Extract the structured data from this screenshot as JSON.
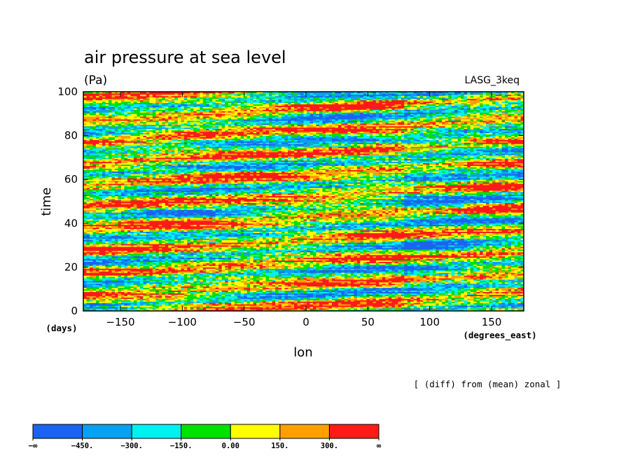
{
  "chart_data": {
    "type": "heatmap",
    "title": "air pressure at sea level",
    "units": "(Pa)",
    "model": "LASG_3keq",
    "xlabel": "lon",
    "ylabel": "time",
    "x_units": "(degrees_east)",
    "y_units": "(days)",
    "xlim": [
      -180,
      176
    ],
    "ylim": [
      0,
      100
    ],
    "x_ticks": [
      -150,
      -100,
      -50,
      0,
      50,
      100,
      150
    ],
    "y_ticks": [
      0,
      20,
      40,
      60,
      80,
      100
    ],
    "note": "[ (diff) from (mean) zonal ]",
    "grid": false,
    "colorbar": {
      "placement": "bottom-left",
      "boundaries": [
        "-450.",
        "-300.",
        "-150.",
        "0.00",
        "150.",
        "300."
      ],
      "end_labels": [
        "−∞",
        "∞"
      ],
      "colors": [
        "#1a64f0",
        "#0aa0f0",
        "#00f0f0",
        "#00e000",
        "#ffff00",
        "#ffa000",
        "#ff1a1a"
      ]
    }
  }
}
